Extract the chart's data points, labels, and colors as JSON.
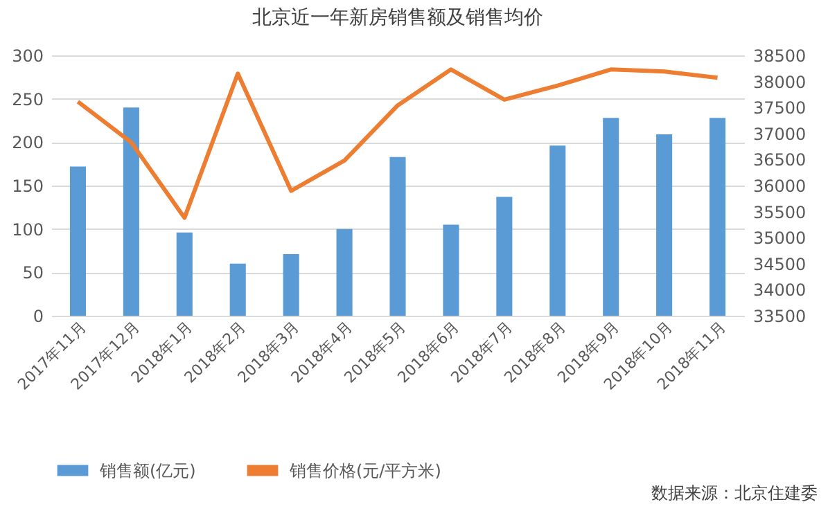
{
  "chart_data": {
    "type": "bar",
    "title": "北京近一年新房销售额及销售均价",
    "categories": [
      "2017年11月",
      "2017年12月",
      "2018年1月",
      "2018年2月",
      "2018年3月",
      "2018年4月",
      "2018年5月",
      "2018年6月",
      "2018年7月",
      "2018年8月",
      "2018年9月",
      "2018年10月",
      "2018年11月"
    ],
    "series": [
      {
        "name": "销售额(亿元)",
        "color": "#5b9bd5",
        "values": [
          172,
          240,
          96,
          60,
          71,
          100,
          183,
          105,
          137,
          196,
          228,
          209,
          228
        ]
      },
      {
        "name": "销售价格(元/平方米)",
        "type": "line",
        "axis": "y2",
        "color": "#ed7d31",
        "values": [
          37610,
          36830,
          35380,
          38150,
          35900,
          36480,
          37540,
          38230,
          37650,
          37920,
          38230,
          38190,
          38070
        ]
      }
    ],
    "ylim": [
      0,
      300
    ],
    "yticks": [
      0,
      50,
      100,
      150,
      200,
      250,
      300
    ],
    "y2lim": [
      33500,
      38500
    ],
    "y2ticks": [
      33500,
      34000,
      34500,
      35000,
      35500,
      36000,
      36500,
      37000,
      37500,
      38000,
      38500
    ],
    "grid": "y",
    "legend": "bottom",
    "annotations": [
      "数据来源：北京住建委"
    ]
  }
}
